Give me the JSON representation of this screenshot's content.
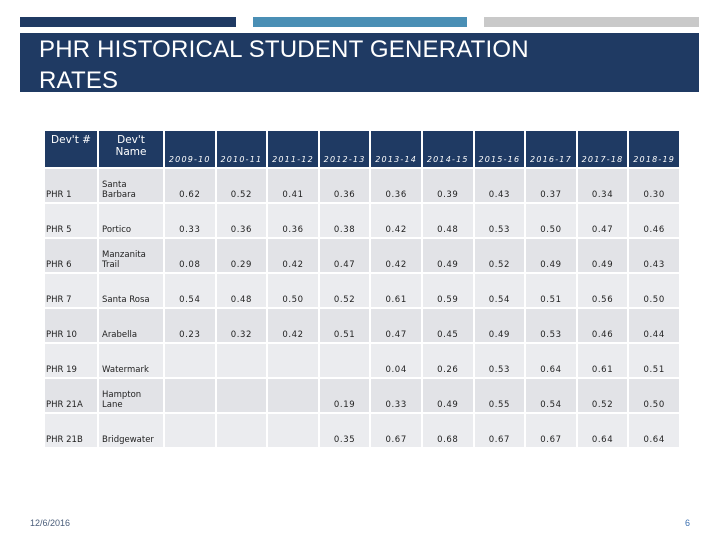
{
  "slide": {
    "title_line1": "PHR HISTORICAL STUDENT GENERATION",
    "title_line2": "RATES",
    "date": "12/6/2016",
    "page_number": "6",
    "colors": {
      "title_band": "#1f3a63",
      "accent_blue": "#4a8fb5",
      "accent_gray": "#c9c9c9",
      "table_header": "#1f3a63",
      "table_cell": "#e2e3e7"
    }
  },
  "table": {
    "headers": {
      "id": "Dev't #",
      "name": "Dev't Name",
      "years": [
        "2009-10",
        "2010-11",
        "2011-12",
        "2012-13",
        "2013-14",
        "2014-15",
        "2015-16",
        "2016-17",
        "2017-18",
        "2018-19"
      ]
    },
    "rows": [
      {
        "id": "PHR 1",
        "name": "Santa Barbara",
        "values": [
          "0.62",
          "0.52",
          "0.41",
          "0.36",
          "0.36",
          "0.39",
          "0.43",
          "0.37",
          "0.34",
          "0.30"
        ]
      },
      {
        "id": "PHR 5",
        "name": "Portico",
        "values": [
          "0.33",
          "0.36",
          "0.36",
          "0.38",
          "0.42",
          "0.48",
          "0.53",
          "0.50",
          "0.47",
          "0.46"
        ]
      },
      {
        "id": "PHR 6",
        "name": "Manzanita Trail",
        "values": [
          "0.08",
          "0.29",
          "0.42",
          "0.47",
          "0.42",
          "0.49",
          "0.52",
          "0.49",
          "0.49",
          "0.43"
        ]
      },
      {
        "id": "PHR 7",
        "name": "Santa Rosa",
        "values": [
          "0.54",
          "0.48",
          "0.50",
          "0.52",
          "0.61",
          "0.59",
          "0.54",
          "0.51",
          "0.56",
          "0.50"
        ]
      },
      {
        "id": "PHR 10",
        "name": "Arabella",
        "values": [
          "0.23",
          "0.32",
          "0.42",
          "0.51",
          "0.47",
          "0.45",
          "0.49",
          "0.53",
          "0.46",
          "0.44"
        ]
      },
      {
        "id": "PHR 19",
        "name": "Watermark",
        "values": [
          "",
          "",
          "",
          "",
          "0.04",
          "0.26",
          "0.53",
          "0.64",
          "0.61",
          "0.51"
        ]
      },
      {
        "id": "PHR 21A",
        "name": "Hampton Lane",
        "values": [
          "",
          "",
          "",
          "0.19",
          "0.33",
          "0.49",
          "0.55",
          "0.54",
          "0.52",
          "0.50"
        ]
      },
      {
        "id": "PHR 21B",
        "name": "Bridgewater",
        "values": [
          "",
          "",
          "",
          "0.35",
          "0.67",
          "0.68",
          "0.67",
          "0.67",
          "0.64",
          "0.64"
        ]
      }
    ]
  }
}
